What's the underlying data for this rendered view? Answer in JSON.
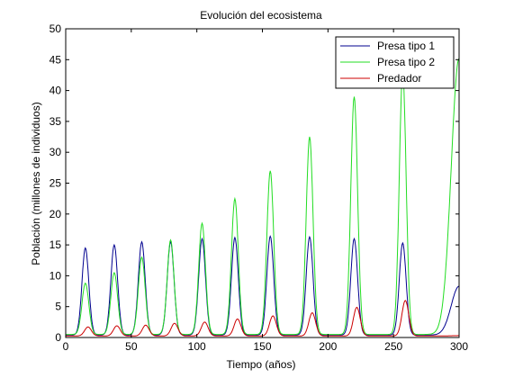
{
  "chart_data": {
    "type": "line",
    "title": "Evolución del ecosistema",
    "xlabel": "Tiempo (años)",
    "ylabel": "Población (millones de individuos)",
    "xlim": [
      0,
      300
    ],
    "ylim": [
      0,
      50
    ],
    "xticks": [
      0,
      50,
      100,
      150,
      200,
      250,
      300
    ],
    "yticks": [
      0,
      5,
      10,
      15,
      20,
      25,
      30,
      35,
      40,
      45,
      50
    ],
    "grid": false,
    "legend_position": "top-right",
    "series": [
      {
        "name": "Presa tipo 1",
        "color": "#00008f",
        "baseline": 0.4,
        "peaks": [
          [
            15,
            14.5
          ],
          [
            37,
            15.0
          ],
          [
            58,
            15.5
          ],
          [
            80,
            15.5
          ],
          [
            104,
            16.0
          ],
          [
            129,
            16.2
          ],
          [
            156,
            16.4
          ],
          [
            186,
            16.3
          ],
          [
            220,
            16.0
          ],
          [
            257,
            15.3
          ]
        ],
        "end": [
          300,
          8.3
        ]
      },
      {
        "name": "Presa tipo 2",
        "color": "#22dd22",
        "baseline": 0.5,
        "peaks": [
          [
            15,
            8.8
          ],
          [
            37,
            10.5
          ],
          [
            58,
            13.0
          ],
          [
            80,
            15.8
          ],
          [
            104,
            18.5
          ],
          [
            129,
            22.5
          ],
          [
            156,
            27.0
          ],
          [
            186,
            32.5
          ],
          [
            220,
            39.0
          ],
          [
            257,
            43.0
          ]
        ],
        "end": [
          300,
          45.2
        ]
      },
      {
        "name": "Predador",
        "color": "#cc0000",
        "baseline": 0.25,
        "peaks": [
          [
            17,
            1.7
          ],
          [
            39,
            1.9
          ],
          [
            61,
            2.0
          ],
          [
            83,
            2.3
          ],
          [
            106,
            2.5
          ],
          [
            131,
            3.0
          ],
          [
            158,
            3.5
          ],
          [
            188,
            4.0
          ],
          [
            222,
            4.9
          ],
          [
            259,
            6.0
          ]
        ],
        "end": [
          300,
          0.3
        ]
      }
    ]
  }
}
